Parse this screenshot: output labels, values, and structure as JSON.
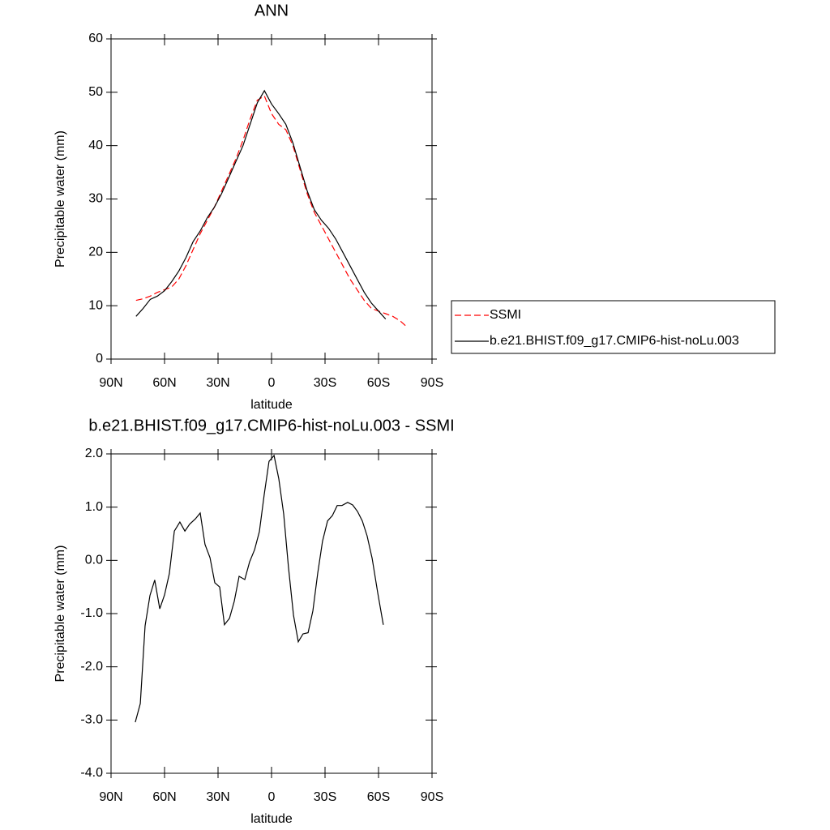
{
  "chart_data": [
    {
      "type": "line",
      "title": "ANN",
      "ylabel": "Precipitable water (mm)",
      "xlabel": "latitude",
      "x": [
        76,
        72,
        68,
        64,
        60,
        56,
        52,
        48,
        44,
        40,
        36,
        32,
        28,
        24,
        20,
        16,
        12,
        8,
        4,
        0,
        -4,
        -8,
        -12,
        -16,
        -20,
        -24,
        -28,
        -32,
        -36,
        -40,
        -44,
        -48,
        -52,
        -56,
        -60,
        -64,
        -68,
        -72,
        -76
      ],
      "series": [
        {
          "name": "SSMI",
          "color": "#ff0000",
          "line_style": "dashed",
          "values": [
            11,
            11.3,
            11.8,
            12.5,
            13,
            13.5,
            15,
            17.5,
            20.5,
            23.5,
            26,
            28.5,
            31.5,
            34.5,
            37.5,
            41,
            45,
            48.5,
            49.3,
            46,
            44,
            43,
            40,
            35.5,
            31,
            27.5,
            25,
            22.5,
            20,
            17.5,
            15,
            13,
            11,
            9.5,
            9,
            8.5,
            8,
            7.2,
            6
          ]
        },
        {
          "name": "b.e21.BHIST.f09_g17.CMIP6-hist-noLu.003",
          "color": "#000000",
          "line_style": "solid",
          "values": [
            8,
            9.5,
            11.2,
            11.8,
            12.8,
            14.5,
            16.5,
            19,
            22,
            24,
            26.5,
            28.5,
            31,
            34,
            37,
            40,
            44,
            48,
            50.3,
            47.8,
            46,
            44,
            40.5,
            36,
            31.5,
            28,
            26,
            24.5,
            22.5,
            20,
            17.5,
            15,
            12.5,
            10.5,
            9,
            7.5,
            null,
            null,
            null
          ]
        }
      ],
      "xlim": [
        90,
        -90
      ],
      "xticks": [
        {
          "value": 90,
          "label": "90N"
        },
        {
          "value": 60,
          "label": "60N"
        },
        {
          "value": 30,
          "label": "30N"
        },
        0,
        {
          "value": -30,
          "label": "30S"
        },
        {
          "value": -60,
          "label": "60S"
        },
        {
          "value": -90,
          "label": "90S"
        }
      ],
      "ylim": [
        0,
        60
      ],
      "yticks": [
        0,
        10,
        20,
        30,
        40,
        50,
        60
      ],
      "legend": "right"
    },
    {
      "type": "line",
      "title": "b.e21.BHIST.f09_g17.CMIP6-hist-noLu.003 - SSMI",
      "ylabel": "Precipitable water (mm)",
      "xlabel": "latitude",
      "x": [
        76.4,
        73.6,
        70.9,
        68.2,
        65.5,
        62.7,
        60,
        57.3,
        54.5,
        51.4,
        48.6,
        45.9,
        42.7,
        40,
        37.3,
        34.5,
        31.8,
        29.1,
        26.4,
        23.6,
        20.9,
        18.2,
        15,
        12.3,
        9.5,
        6.8,
        4.1,
        1.4,
        -1.4,
        -4.1,
        -6.8,
        -9.5,
        -12.3,
        -15,
        -17.7,
        -20.5,
        -23.2,
        -25.9,
        -28.6,
        -31.4,
        -34.1,
        -36.8,
        -39.5,
        -42.7,
        -45.5,
        -48.2,
        -50.9,
        -53.6,
        -56.4,
        -59.5,
        -62.7
      ],
      "color": "#000000",
      "values": [
        -3.04,
        -2.69,
        -1.23,
        -0.66,
        -0.37,
        -0.91,
        -0.65,
        -0.25,
        0.55,
        0.72,
        0.55,
        0.68,
        0.78,
        0.89,
        0.3,
        0.05,
        -0.42,
        -0.5,
        -1.21,
        -1.09,
        -0.77,
        -0.3,
        -0.36,
        -0.03,
        0.2,
        0.54,
        1.24,
        1.86,
        1.97,
        1.53,
        0.87,
        -0.13,
        -1.03,
        -1.53,
        -1.38,
        -1.36,
        -0.95,
        -0.24,
        0.36,
        0.74,
        0.84,
        1.03,
        1.03,
        1.09,
        1.04,
        0.92,
        0.74,
        0.46,
        0.04,
        -0.6,
        -1.21
      ],
      "xlim": [
        90,
        -90
      ],
      "xticks": [
        {
          "value": 90,
          "label": "90N"
        },
        {
          "value": 60,
          "label": "60N"
        },
        {
          "value": 30,
          "label": "30N"
        },
        0,
        {
          "value": -30,
          "label": "30S"
        },
        {
          "value": -60,
          "label": "60S"
        },
        {
          "value": -90,
          "label": "90S"
        }
      ],
      "ylim": [
        -4,
        2
      ],
      "yticks": [
        {
          "value": -4,
          "label": "-4.0"
        },
        {
          "value": -3,
          "label": "-3.0"
        },
        {
          "value": -2,
          "label": "-2.0"
        },
        {
          "value": -1,
          "label": "-1.0"
        },
        {
          "value": 0,
          "label": "0.0"
        },
        {
          "value": 1,
          "label": "1.0"
        },
        {
          "value": 2,
          "label": "2.0"
        }
      ]
    }
  ]
}
